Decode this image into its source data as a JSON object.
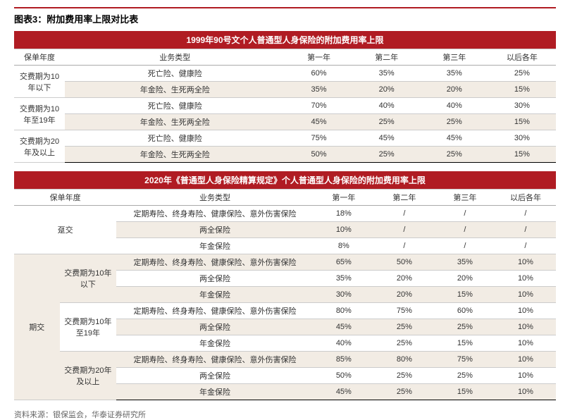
{
  "title": "图表3：附加费用率上限对比表",
  "table1": {
    "banner": "1999年90号文个人普通型人身保险的附加费用率上限",
    "heads": [
      "保单年度",
      "业务类型",
      "第一年",
      "第二年",
      "第三年",
      "以后各年"
    ],
    "groups": [
      {
        "label": "交费期为10年以下",
        "rows": [
          {
            "btype": "死亡险、健康险",
            "v": [
              "60%",
              "35%",
              "35%",
              "25%"
            ]
          },
          {
            "btype": "年金险、生死两全险",
            "v": [
              "35%",
              "20%",
              "20%",
              "15%"
            ]
          }
        ]
      },
      {
        "label": "交费期为10年至19年",
        "rows": [
          {
            "btype": "死亡险、健康险",
            "v": [
              "70%",
              "40%",
              "40%",
              "30%"
            ]
          },
          {
            "btype": "年金险、生死两全险",
            "v": [
              "45%",
              "25%",
              "25%",
              "15%"
            ]
          }
        ]
      },
      {
        "label": "交费期为20年及以上",
        "rows": [
          {
            "btype": "死亡险、健康险",
            "v": [
              "75%",
              "45%",
              "45%",
              "30%"
            ]
          },
          {
            "btype": "年金险、生死两全险",
            "v": [
              "50%",
              "25%",
              "25%",
              "15%"
            ]
          }
        ]
      }
    ]
  },
  "table2": {
    "banner": "2020年《普通型人身保险精算规定》个人普通型人身保险的附加费用率上限",
    "heads": [
      "保单年度",
      "业务类型",
      "第一年",
      "第二年",
      "第三年",
      "以后各年"
    ],
    "sections": [
      {
        "label": "趸交",
        "cat2": null,
        "rows": [
          {
            "btype": "定期寿险、终身寿险、健康保险、意外伤害保险",
            "v": [
              "18%",
              "/",
              "/",
              "/"
            ]
          },
          {
            "btype": "两全保险",
            "v": [
              "10%",
              "/",
              "/",
              "/"
            ]
          },
          {
            "btype": "年金保险",
            "v": [
              "8%",
              "/",
              "/",
              "/"
            ]
          }
        ]
      },
      {
        "label": "期交",
        "sub": [
          {
            "cat2": "交费期为10年以下",
            "rows": [
              {
                "btype": "定期寿险、终身寿险、健康保险、意外伤害保险",
                "v": [
                  "65%",
                  "50%",
                  "35%",
                  "10%"
                ]
              },
              {
                "btype": "两全保险",
                "v": [
                  "35%",
                  "20%",
                  "20%",
                  "10%"
                ]
              },
              {
                "btype": "年金保险",
                "v": [
                  "30%",
                  "20%",
                  "15%",
                  "10%"
                ]
              }
            ]
          },
          {
            "cat2": "交费期为10年至19年",
            "rows": [
              {
                "btype": "定期寿险、终身寿险、健康保险、意外伤害保险",
                "v": [
                  "80%",
                  "75%",
                  "60%",
                  "10%"
                ]
              },
              {
                "btype": "两全保险",
                "v": [
                  "45%",
                  "25%",
                  "25%",
                  "10%"
                ]
              },
              {
                "btype": "年金保险",
                "v": [
                  "40%",
                  "25%",
                  "15%",
                  "10%"
                ]
              }
            ]
          },
          {
            "cat2": "交费期为20年及以上",
            "rows": [
              {
                "btype": "定期寿险、终身寿险、健康保险、意外伤害保险",
                "v": [
                  "85%",
                  "80%",
                  "75%",
                  "10%"
                ]
              },
              {
                "btype": "两全保险",
                "v": [
                  "50%",
                  "25%",
                  "25%",
                  "10%"
                ]
              },
              {
                "btype": "年金保险",
                "v": [
                  "45%",
                  "25%",
                  "15%",
                  "10%"
                ]
              }
            ]
          }
        ]
      }
    ]
  },
  "source": "资料来源：银保监会，华泰证券研究所",
  "styling": {
    "brand_color": "#b01c23",
    "alt_row_color": "#f2ece4",
    "bg": "#ffffff",
    "border_light": "#ccc",
    "border_dark": "#000",
    "font": "Microsoft YaHei",
    "title_fontsize": 13,
    "cell_fontsize": 11,
    "source_color": "#666"
  }
}
